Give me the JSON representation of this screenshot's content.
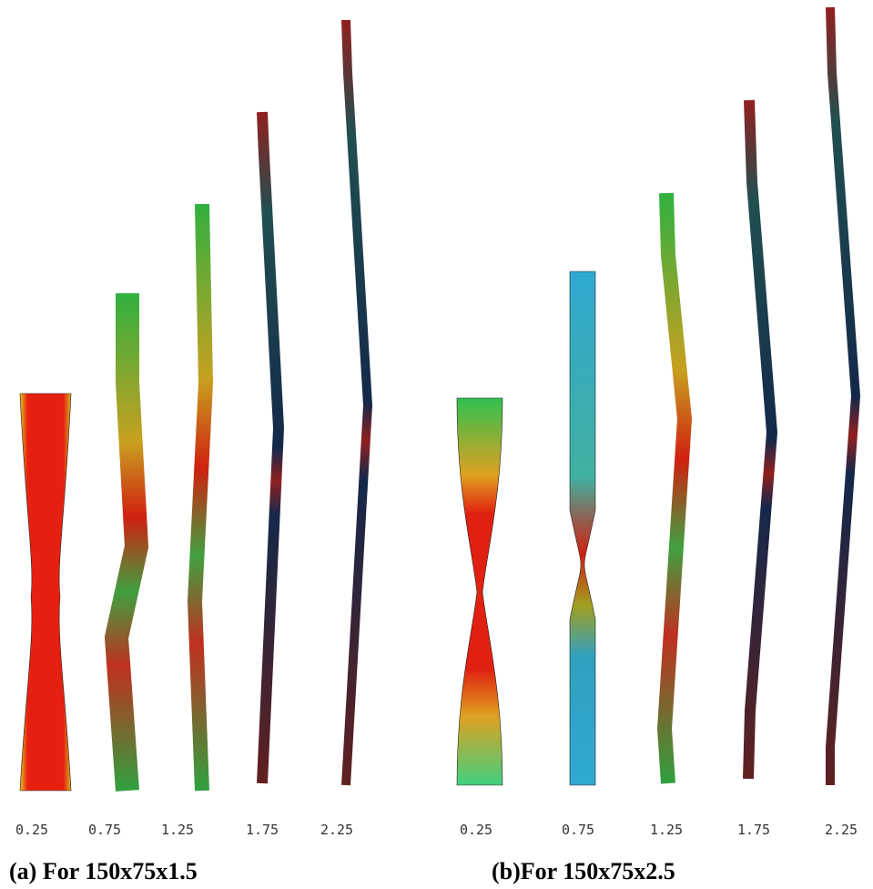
{
  "panels": [
    {
      "labels": [
        "0.25",
        "0.75",
        "1.25",
        "1.75",
        "2.25"
      ],
      "caption": "(a)  For 150x75x1.5"
    },
    {
      "labels": [
        "0.25",
        "0.75",
        "1.25",
        "1.75",
        "2.25"
      ],
      "caption": "(b)For 150x75x2.5"
    }
  ]
}
